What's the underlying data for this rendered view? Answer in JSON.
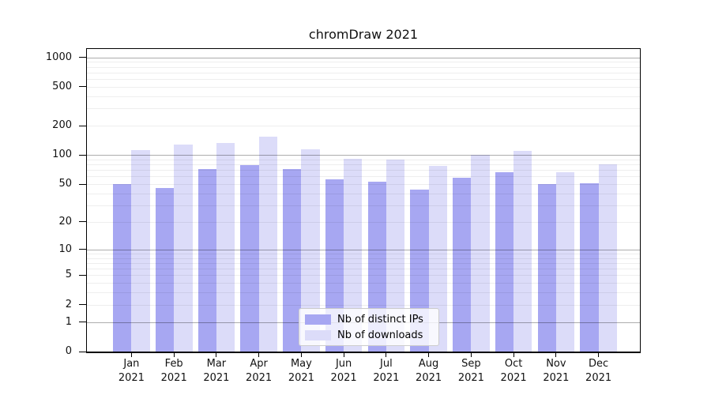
{
  "title": "chromDraw 2021",
  "legend": {
    "items": [
      {
        "label": "Nb of distinct IPs",
        "color": "#a7a7f2"
      },
      {
        "label": "Nb of downloads",
        "color": "#dcdcf9"
      }
    ]
  },
  "chart_data": {
    "type": "bar",
    "title": "chromDraw 2021",
    "categories": [
      "Jan 2021",
      "Feb 2021",
      "Mar 2021",
      "Apr 2021",
      "May 2021",
      "Jun 2021",
      "Jul 2021",
      "Aug 2021",
      "Sep 2021",
      "Oct 2021",
      "Nov 2021",
      "Dec 2021"
    ],
    "series": [
      {
        "name": "Nb of distinct IPs",
        "color": "#a7a7f2",
        "values": [
          50,
          46,
          72,
          79,
          72,
          56,
          53,
          44,
          58,
          67,
          50,
          51
        ]
      },
      {
        "name": "Nb of downloads",
        "color": "#dcdcf9",
        "values": [
          112,
          129,
          134,
          154,
          114,
          92,
          90,
          78,
          100,
          111,
          67,
          81
        ]
      }
    ],
    "xlabel": "",
    "ylabel": "",
    "y_scale": "log1p",
    "y_ticks": [
      0,
      1,
      2,
      5,
      10,
      20,
      50,
      100,
      200,
      500,
      1000
    ],
    "ylim": [
      0,
      1230
    ],
    "grid": "horizontal; faint minor lines at 2-9 of each decade, darker major lines at 1, 10, 100, 1000",
    "legend_position": "lower center"
  }
}
